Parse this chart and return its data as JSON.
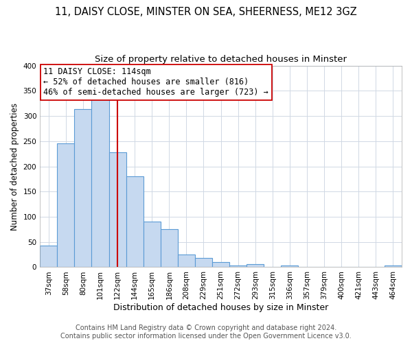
{
  "title1": "11, DAISY CLOSE, MINSTER ON SEA, SHEERNESS, ME12 3GZ",
  "title2": "Size of property relative to detached houses in Minster",
  "xlabel": "Distribution of detached houses by size in Minster",
  "ylabel": "Number of detached properties",
  "bar_labels": [
    "37sqm",
    "58sqm",
    "80sqm",
    "101sqm",
    "122sqm",
    "144sqm",
    "165sqm",
    "186sqm",
    "208sqm",
    "229sqm",
    "251sqm",
    "272sqm",
    "293sqm",
    "315sqm",
    "336sqm",
    "357sqm",
    "379sqm",
    "400sqm",
    "421sqm",
    "443sqm",
    "464sqm"
  ],
  "bar_values": [
    43,
    245,
    313,
    335,
    228,
    180,
    90,
    75,
    25,
    18,
    10,
    4,
    6,
    0,
    3,
    0,
    0,
    0,
    0,
    0,
    3
  ],
  "bar_color": "#c6d9f0",
  "bar_edge_color": "#5b9bd5",
  "vline_x_index": 4,
  "vline_color": "#cc0000",
  "annotation_line1": "11 DAISY CLOSE: 114sqm",
  "annotation_line2": "← 52% of detached houses are smaller (816)",
  "annotation_line3": "46% of semi-detached houses are larger (723) →",
  "ylim": [
    0,
    400
  ],
  "yticks": [
    0,
    50,
    100,
    150,
    200,
    250,
    300,
    350,
    400
  ],
  "footer1": "Contains HM Land Registry data © Crown copyright and database right 2024.",
  "footer2": "Contains public sector information licensed under the Open Government Licence v3.0.",
  "bg_color": "#ffffff",
  "grid_color": "#d0d8e4",
  "title1_fontsize": 10.5,
  "title2_fontsize": 9.5,
  "xlabel_fontsize": 9,
  "ylabel_fontsize": 8.5,
  "tick_fontsize": 7.5,
  "annotation_fontsize": 8.5,
  "footer_fontsize": 7
}
